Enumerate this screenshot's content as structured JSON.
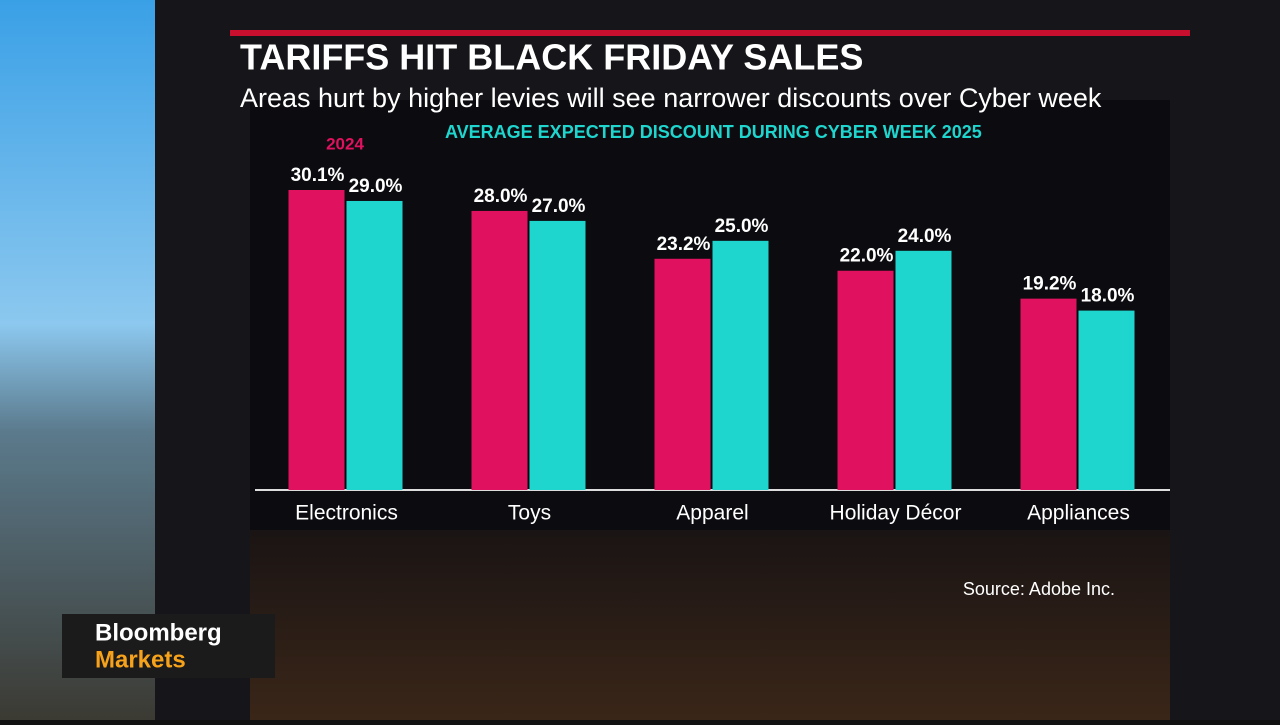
{
  "chart_data": {
    "type": "bar",
    "title": "TARIFFS HIT BLACK FRIDAY SALES",
    "subtitle": "Areas hurt by higher levies will see narrower discounts over Cyber week",
    "categories": [
      "Electronics",
      "Toys",
      "Apparel",
      "Holiday Décor",
      "Appliances"
    ],
    "series": [
      {
        "name": "2024",
        "color": "#e0115f",
        "values": [
          30.1,
          28.0,
          23.2,
          22.0,
          19.2
        ],
        "value_labels": [
          "30.1%",
          "28.0%",
          "23.2%",
          "22.0%",
          "19.2%"
        ]
      },
      {
        "name": "AVERAGE EXPECTED DISCOUNT DURING CYBER WEEK 2025",
        "color": "#1fd6cf",
        "values": [
          29.0,
          27.0,
          25.0,
          24.0,
          18.0
        ],
        "value_labels": [
          "29.0%",
          "27.0%",
          "25.0%",
          "24.0%",
          "18.0%"
        ]
      }
    ],
    "source": "Source: Adobe Inc."
  },
  "logo": {
    "line1": "Bloomberg",
    "line2": "Markets"
  }
}
